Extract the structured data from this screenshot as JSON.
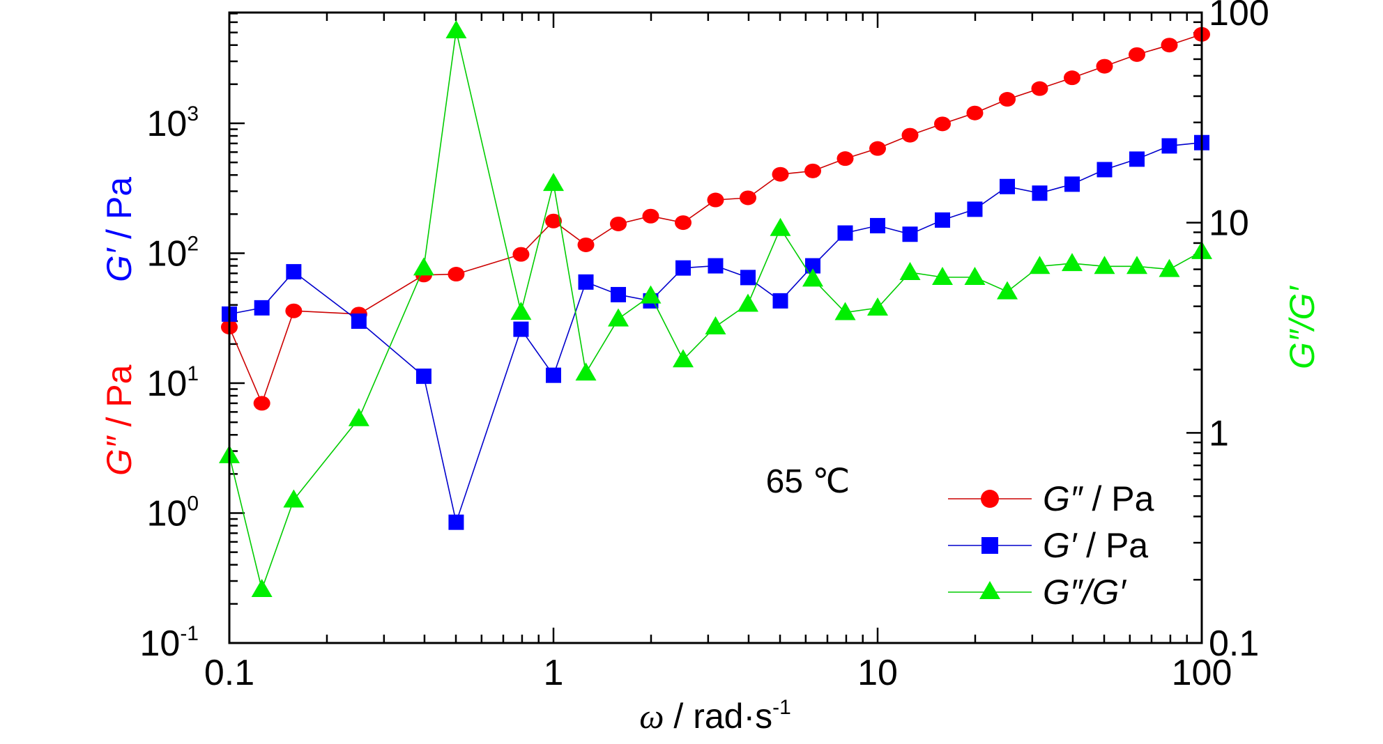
{
  "chart_data": {
    "type": "scatter",
    "x_scale": "log",
    "left_scale": "log",
    "right_scale": "log",
    "xlim": [
      0.1,
      100
    ],
    "left_ylim": [
      0.1,
      6000
    ],
    "right_ylim": [
      0.1,
      100
    ],
    "x_ticks": [
      {
        "value": 0.1,
        "label": "0.1"
      },
      {
        "value": 1,
        "label": "1"
      },
      {
        "value": 10,
        "label": "10"
      },
      {
        "value": 100,
        "label": "100"
      }
    ],
    "left_ticks": [
      {
        "value": 0.1,
        "base": "10",
        "exp": "-1"
      },
      {
        "value": 1,
        "base": "10",
        "exp": "0"
      },
      {
        "value": 10,
        "base": "10",
        "exp": "1"
      },
      {
        "value": 100,
        "base": "10",
        "exp": "2"
      },
      {
        "value": 1000,
        "base": "10",
        "exp": "3"
      }
    ],
    "right_ticks": [
      {
        "value": 0.1,
        "label": "0.1"
      },
      {
        "value": 1,
        "label": "1"
      },
      {
        "value": 10,
        "label": "10"
      },
      {
        "value": 100,
        "label": "100"
      }
    ],
    "xlabel": {
      "symbol": "ω",
      "rest": " / rad·s",
      "sup": "-1"
    },
    "left_label_gpp": {
      "symbol": "G″",
      "rest": " / Pa",
      "color": "#ff0000"
    },
    "left_label_gp": {
      "symbol": "G′",
      "rest": " / Pa",
      "color": "#0000ff"
    },
    "right_label": {
      "text": "G″/G′",
      "color": "#00ee00"
    },
    "annotation": "65 ℃",
    "x": [
      0.1,
      0.126,
      0.158,
      0.251,
      0.398,
      0.501,
      0.794,
      1.0,
      1.259,
      1.585,
      1.995,
      2.512,
      3.162,
      3.981,
      5.012,
      6.31,
      7.943,
      10.0,
      12.59,
      15.85,
      19.95,
      25.12,
      31.62,
      39.81,
      50.12,
      63.1,
      79.43,
      100
    ],
    "series": [
      {
        "name": "G″ / Pa",
        "axis": "left",
        "marker": "circle",
        "color": "#ff0000",
        "line_color": "#cc0000",
        "values": [
          27,
          7,
          36,
          34,
          68,
          69,
          98,
          177,
          116,
          168,
          193,
          172,
          257,
          267,
          405,
          430,
          535,
          640,
          810,
          990,
          1200,
          1530,
          1850,
          2240,
          2750,
          3380,
          4000,
          4840
        ]
      },
      {
        "name": "G′ / Pa",
        "axis": "left",
        "marker": "square",
        "color": "#0000ff",
        "line_color": "#0000cc",
        "values": [
          34,
          38,
          72,
          30,
          11.3,
          0.85,
          26,
          11.5,
          60,
          48,
          43,
          77,
          80,
          65,
          43,
          80,
          143,
          163,
          140,
          180,
          218,
          326,
          290,
          340,
          440,
          530,
          670,
          710
        ]
      },
      {
        "name": "G″/G′",
        "axis": "right",
        "marker": "triangle",
        "color": "#00ee00",
        "line_color": "#00cc00",
        "values": [
          0.78,
          0.18,
          0.48,
          1.17,
          6.1,
          82,
          3.75,
          15.4,
          1.93,
          3.49,
          4.49,
          2.23,
          3.2,
          4.1,
          9.4,
          5.4,
          3.74,
          3.93,
          5.8,
          5.5,
          5.5,
          4.7,
          6.2,
          6.4,
          6.2,
          6.2,
          6.0,
          7.3
        ]
      }
    ],
    "legend": {
      "placement": "bottom-right",
      "entries": [
        {
          "symbol": "G″",
          "rest": " / Pa"
        },
        {
          "symbol": "G′",
          "rest": " / Pa"
        },
        {
          "symbol": "G″/G′",
          "rest": ""
        }
      ]
    }
  }
}
